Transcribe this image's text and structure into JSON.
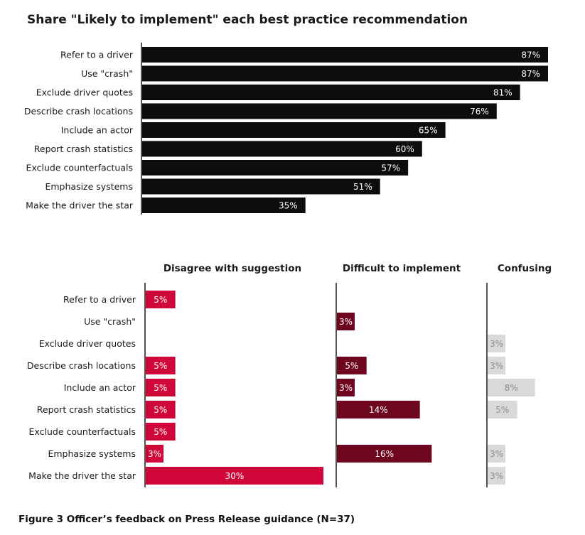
{
  "title": "Share \"Likely to implement\" each best practice recommendation",
  "caption": "Figure 3 Officer’s feedback on Press Release guidance (N=37)",
  "colors": {
    "likely": "#0d0d0d",
    "likely_label": "#ffffff",
    "disagree": "#d0083a",
    "disagree_label": "#ffffff",
    "difficult": "#6e0620",
    "difficult_label": "#ffffff",
    "confusing": "#d9d9d9",
    "confusing_label": "#8c8c8c",
    "axis": "#1a1a1a"
  },
  "chart_data": [
    {
      "type": "bar",
      "orientation": "horizontal",
      "title": "Share \"Likely to implement\" each best practice recommendation",
      "categories": [
        "Refer to a driver",
        "Use \"crash\"",
        "Exclude driver quotes",
        "Describe crash locations",
        "Include an actor",
        "Report crash statistics",
        "Exclude counterfactuals",
        "Emphasize systems",
        "Make the driver the star"
      ],
      "values": [
        87,
        87,
        81,
        76,
        65,
        60,
        57,
        51,
        35
      ],
      "value_labels": [
        "87%",
        "87%",
        "81%",
        "76%",
        "65%",
        "60%",
        "57%",
        "51%",
        "35%"
      ],
      "xlim": [
        0,
        87
      ],
      "unit": "%"
    },
    {
      "type": "bar",
      "orientation": "horizontal",
      "layout": "small-multiples",
      "categories": [
        "Refer to a driver",
        "Use \"crash\"",
        "Exclude driver quotes",
        "Describe crash locations",
        "Include an actor",
        "Report crash statistics",
        "Exclude counterfactuals",
        "Emphasize systems",
        "Make the driver the star"
      ],
      "series": [
        {
          "name": "Disagree with suggestion",
          "values": [
            5,
            null,
            null,
            5,
            5,
            5,
            5,
            3,
            30
          ],
          "value_labels": [
            "5%",
            "",
            "",
            "5%",
            "5%",
            "5%",
            "5%",
            "3%",
            "30%"
          ]
        },
        {
          "name": "Difficult to implement",
          "values": [
            null,
            3,
            null,
            5,
            3,
            14,
            null,
            16,
            null
          ],
          "value_labels": [
            "",
            "3%",
            "",
            "5%",
            "3%",
            "14%",
            "",
            "16%",
            ""
          ]
        },
        {
          "name": "Confusing",
          "values": [
            null,
            null,
            3,
            3,
            8,
            5,
            null,
            3,
            3
          ],
          "value_labels": [
            "",
            "",
            "3%",
            "3%",
            "8%",
            "5%",
            "",
            "3%",
            "3%"
          ]
        }
      ],
      "xlim": [
        0,
        30
      ],
      "unit": "%"
    }
  ]
}
